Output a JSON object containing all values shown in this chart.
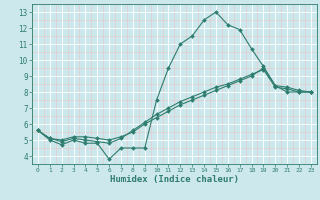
{
  "xlabel": "Humidex (Indice chaleur)",
  "background_color": "#cce8ec",
  "grid_major_color": "#ffffff",
  "grid_minor_color": "#e8c8c8",
  "line_color": "#2e7d6e",
  "xlim": [
    -0.5,
    23.5
  ],
  "ylim": [
    3.5,
    13.5
  ],
  "yticks": [
    4,
    5,
    6,
    7,
    8,
    9,
    10,
    11,
    12,
    13
  ],
  "xticks": [
    0,
    1,
    2,
    3,
    4,
    5,
    6,
    7,
    8,
    9,
    10,
    11,
    12,
    13,
    14,
    15,
    16,
    17,
    18,
    19,
    20,
    21,
    22,
    23
  ],
  "line1": [
    5.6,
    5.0,
    4.7,
    5.0,
    4.8,
    4.8,
    3.8,
    4.5,
    4.5,
    4.5,
    7.5,
    9.5,
    11.0,
    11.5,
    12.5,
    13.0,
    12.2,
    11.9,
    10.7,
    9.6,
    8.4,
    8.0,
    8.0,
    8.0
  ],
  "line2": [
    5.6,
    5.1,
    5.0,
    5.2,
    5.2,
    5.1,
    5.0,
    5.2,
    5.5,
    6.0,
    6.4,
    6.8,
    7.2,
    7.5,
    7.8,
    8.1,
    8.4,
    8.7,
    9.0,
    9.5,
    8.4,
    8.3,
    8.1,
    8.0
  ],
  "line3": [
    5.6,
    5.1,
    4.9,
    5.1,
    5.0,
    4.9,
    4.8,
    5.1,
    5.6,
    6.1,
    6.6,
    7.0,
    7.4,
    7.7,
    8.0,
    8.3,
    8.5,
    8.8,
    9.1,
    9.4,
    8.3,
    8.2,
    8.0,
    8.0
  ]
}
